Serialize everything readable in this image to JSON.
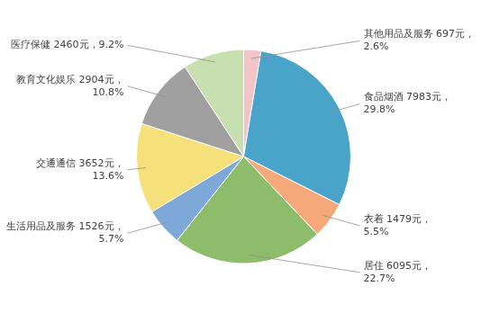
{
  "chart_data": {
    "type": "pie",
    "categories": [
      "其他用品及服务 697元，\n2.6%",
      "食品烟酒 7983元，\n29.8%",
      "衣着 1479元，\n5.5%",
      "居住 6095元，\n22.7%",
      "生活用品及服务 1526元，\n5.7%",
      "交通通信 3652元，\n13.6%",
      "教育文化娱乐 2904元，\n10.8%",
      "医疗保健 2460元，9.2%"
    ],
    "values": [
      2.6,
      29.8,
      5.5,
      22.7,
      5.7,
      13.6,
      10.8,
      9.2
    ],
    "colors": [
      "#F2C4C8",
      "#4AA3C8",
      "#F5A97A",
      "#8DBD6A",
      "#7EA8D8",
      "#F5E07A",
      "#A0A0A0",
      "#C8DFB0"
    ]
  }
}
